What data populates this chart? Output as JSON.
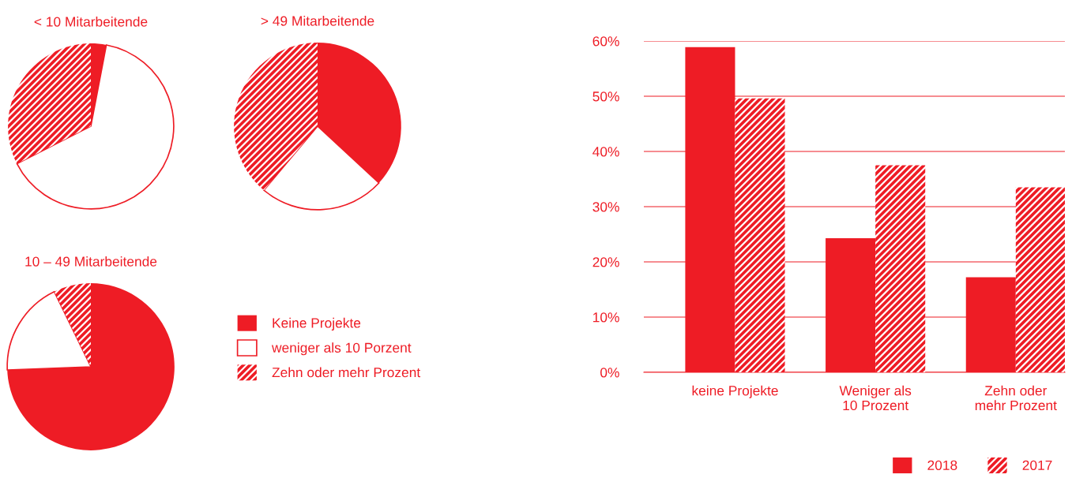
{
  "chart_data": [
    {
      "type": "pie",
      "title": "< 10 Mitarbeitende",
      "categories": [
        "Keine Projekte",
        "weniger als 10 Porzent",
        "Zehn oder mehr Prozent"
      ],
      "values": [
        3,
        64.5,
        32.5
      ],
      "colors": [
        "#ee1c25",
        "#ffffff",
        "#ee1c25"
      ],
      "legend": "right"
    },
    {
      "type": "pie",
      "title": "> 49 Mitarbeitende",
      "categories": [
        null,
        null,
        null
      ],
      "values": [
        36.9,
        24.2,
        38.9
      ],
      "colors": [
        "#ee1c25",
        "#ffffff",
        "#ee1c25"
      ]
    },
    {
      "type": "pie",
      "title": "10 – 49 Mitarbeitende",
      "categories": [
        null,
        null,
        null
      ],
      "values": [
        74.4,
        18.4,
        7.2
      ],
      "colors": [
        "#ee1c25",
        "#ffffff",
        "#ee1c25"
      ]
    },
    {
      "type": "bar",
      "categories": [
        "keine Projekte",
        "Weniger als\n10 Prozent",
        "Zehn oder\nmehr Prozent"
      ],
      "series": [
        {
          "name": "2018",
          "color": "#ee1c25",
          "values": [
            58.9,
            24.3,
            17.2
          ]
        },
        {
          "name": "2017",
          "color": "#ee1c25",
          "values": [
            49.6,
            37.5,
            33.5
          ]
        }
      ],
      "ylim": [
        0,
        60
      ],
      "yticks": [
        {
          "value": 0,
          "label": "0%"
        },
        {
          "value": 10,
          "label": "10%"
        },
        {
          "value": 20,
          "label": "20%"
        },
        {
          "value": 30,
          "label": "30%"
        },
        {
          "value": 40,
          "label": "40%"
        },
        {
          "value": 50,
          "label": "50%"
        },
        {
          "value": 60,
          "label": "60%"
        }
      ],
      "grid": "y",
      "legend": "bottom right"
    }
  ]
}
